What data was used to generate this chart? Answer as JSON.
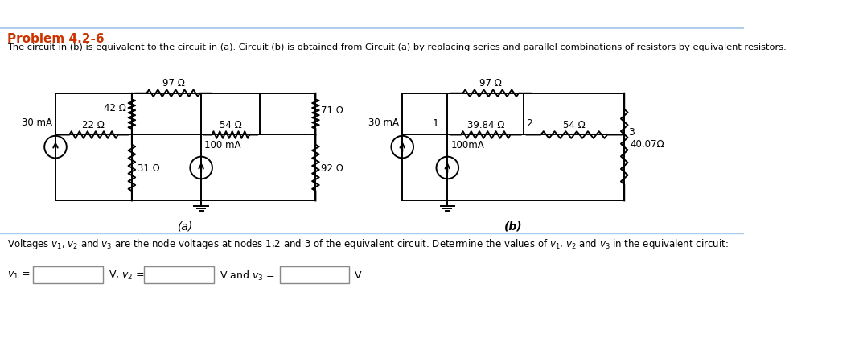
{
  "title": "Problem 4.2-6",
  "title_color": "#cc3300",
  "subtitle": "The circuit in (b) is equivalent to the circuit in (a). Circuit (b) is obtained from Circuit (a) by replacing series and parallel combinations of resistors by equivalent resistors.",
  "subtitle_color": "#000000",
  "bg_color": "#ffffff",
  "line_color": "#000000",
  "label_a": "(a)",
  "label_b": "(b)",
  "circuit_a": {
    "r_22": "22 Ω",
    "r_42": "42 Ω",
    "r_97": "97 Ω",
    "r_31": "31 Ω",
    "r_54": "54 Ω",
    "r_71": "71 Ω",
    "r_92": "92 Ω",
    "i_30": "30 mA",
    "i_100": "100 mA"
  },
  "circuit_b": {
    "r_97": "97 Ω",
    "r_3984": "39.84 Ω",
    "r_54": "54 Ω",
    "r_40": "40.07Ω",
    "i_30": "30 mA",
    "i_100": "100mA",
    "node1": "1",
    "node2": "2",
    "node3": "3"
  },
  "bottom_line": "Voltages v1, v2 and v3 are the node voltages at nodes 1,2 and 3 of the equivalent circuit. Determine the values of v1, v2 and v3 in the equivalent circuit:",
  "v1_pre": "v₁ =",
  "v2_pre": "V, v₂ =",
  "v3_pre": "V and v₃ =",
  "v_end": "V."
}
